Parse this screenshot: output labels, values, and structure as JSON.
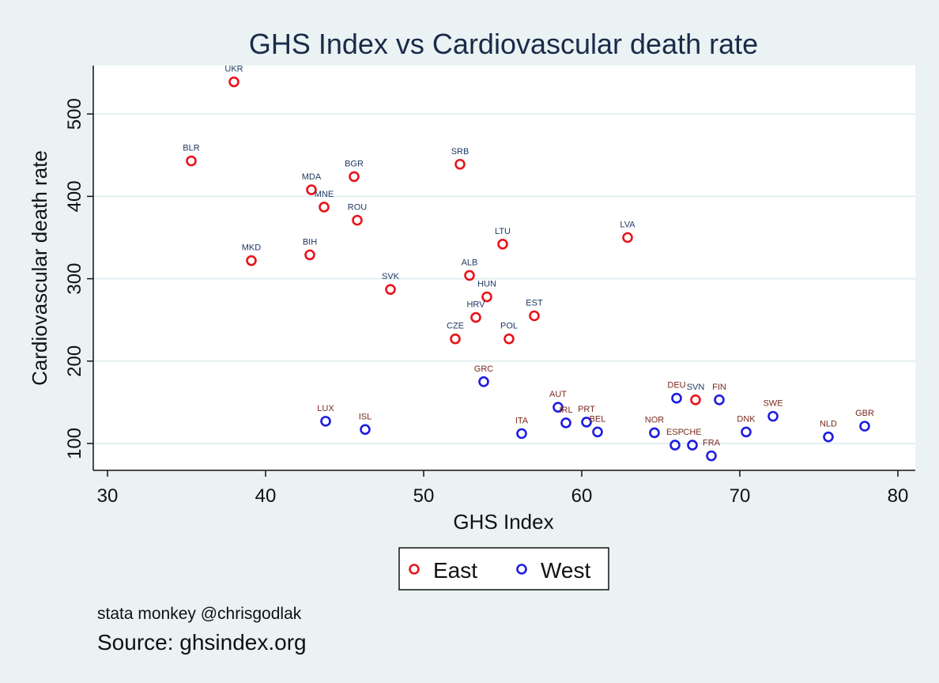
{
  "chart_data": {
    "type": "scatter",
    "title": "GHS Index vs Cardiovascular death rate",
    "xlabel": "GHS Index",
    "ylabel": "Cardiovascular death rate",
    "xlim": [
      29,
      81
    ],
    "ylim": [
      70,
      555
    ],
    "xticks": [
      30,
      40,
      50,
      60,
      70,
      80
    ],
    "yticks": [
      100,
      200,
      300,
      400,
      500
    ],
    "grid": "horizontal",
    "legend": {
      "position": "bottom",
      "entries": [
        "East",
        "West"
      ]
    },
    "colors": {
      "East": "#e8141b",
      "West": "#1d1de0"
    },
    "series": [
      {
        "name": "East",
        "points": [
          {
            "label": "UKR",
            "x": 38.0,
            "y": 539
          },
          {
            "label": "BLR",
            "x": 35.3,
            "y": 443
          },
          {
            "label": "MDA",
            "x": 42.9,
            "y": 408
          },
          {
            "label": "MNE",
            "x": 43.7,
            "y": 387
          },
          {
            "label": "BGR",
            "x": 45.6,
            "y": 424
          },
          {
            "label": "ROU",
            "x": 45.8,
            "y": 371
          },
          {
            "label": "MKD",
            "x": 39.1,
            "y": 322
          },
          {
            "label": "BIH",
            "x": 42.8,
            "y": 329
          },
          {
            "label": "SVK",
            "x": 47.9,
            "y": 287
          },
          {
            "label": "SRB",
            "x": 52.3,
            "y": 439
          },
          {
            "label": "LTU",
            "x": 55.0,
            "y": 342
          },
          {
            "label": "ALB",
            "x": 52.9,
            "y": 304
          },
          {
            "label": "HUN",
            "x": 54.0,
            "y": 278
          },
          {
            "label": "HRV",
            "x": 53.3,
            "y": 253
          },
          {
            "label": "CZE",
            "x": 52.0,
            "y": 227
          },
          {
            "label": "POL",
            "x": 55.4,
            "y": 227
          },
          {
            "label": "EST",
            "x": 57.0,
            "y": 255
          },
          {
            "label": "LVA",
            "x": 62.9,
            "y": 350
          },
          {
            "label": "SVN",
            "x": 67.2,
            "y": 153
          }
        ]
      },
      {
        "name": "West",
        "points": [
          {
            "label": "LUX",
            "x": 43.8,
            "y": 127
          },
          {
            "label": "ISL",
            "x": 46.3,
            "y": 117
          },
          {
            "label": "GRC",
            "x": 53.8,
            "y": 175
          },
          {
            "label": "ITA",
            "x": 56.2,
            "y": 112
          },
          {
            "label": "AUT",
            "x": 58.5,
            "y": 144
          },
          {
            "label": "IRL",
            "x": 59.0,
            "y": 125
          },
          {
            "label": "PRT",
            "x": 60.3,
            "y": 126
          },
          {
            "label": "BEL",
            "x": 61.0,
            "y": 114
          },
          {
            "label": "NOR",
            "x": 64.6,
            "y": 113
          },
          {
            "label": "ESP",
            "x": 65.9,
            "y": 98
          },
          {
            "label": "DEU",
            "x": 66.0,
            "y": 155
          },
          {
            "label": "CHE",
            "x": 67.0,
            "y": 98
          },
          {
            "label": "FIN",
            "x": 68.7,
            "y": 153
          },
          {
            "label": "FRA",
            "x": 68.2,
            "y": 85
          },
          {
            "label": "DNK",
            "x": 70.4,
            "y": 114
          },
          {
            "label": "SWE",
            "x": 72.1,
            "y": 133
          },
          {
            "label": "NLD",
            "x": 75.6,
            "y": 108
          },
          {
            "label": "GBR",
            "x": 77.9,
            "y": 121
          }
        ]
      }
    ]
  },
  "notes": {
    "credit": "stata monkey @chrisgodlak",
    "source": "Source: ghsindex.org"
  }
}
